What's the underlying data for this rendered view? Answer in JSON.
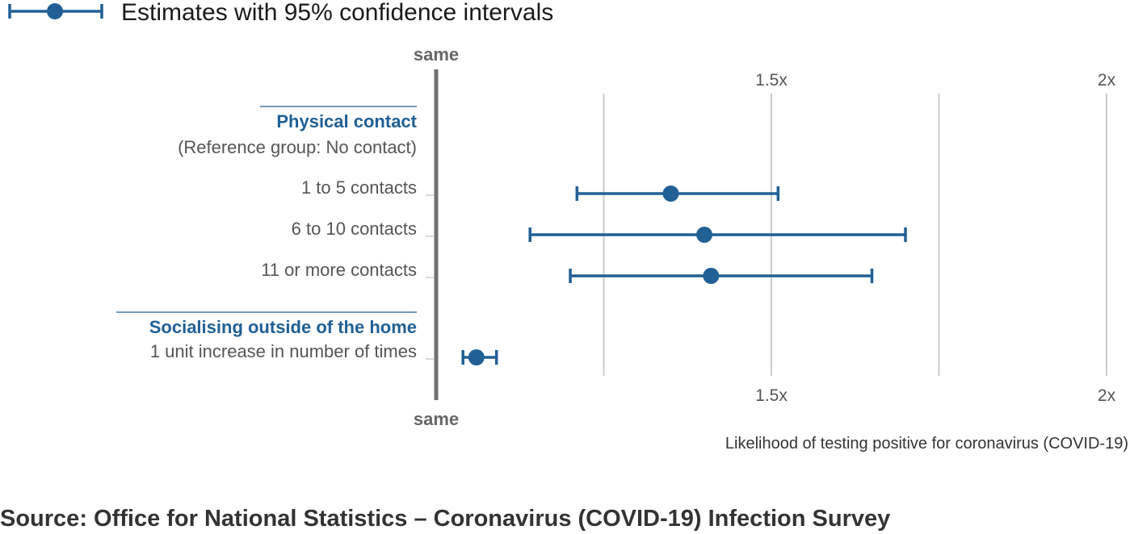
{
  "legend": {
    "label": "Estimates with 95% confidence intervals"
  },
  "reference_label": "same",
  "chart_data": {
    "type": "scatter",
    "description_type": "forest plot",
    "x_axis": {
      "scale": "multiplicative",
      "range": [
        1.0,
        2.0
      ],
      "ticks": [
        {
          "value": 1.5,
          "label": "1.5x"
        },
        {
          "value": 2.0,
          "label": "2x"
        }
      ],
      "gridlines": [
        1.25,
        1.5,
        1.75,
        2.0
      ],
      "reference_value": 1.0,
      "title": "Likelihood of testing positive for coronavirus (COVID-19)"
    },
    "groups": [
      {
        "title": "Physical contact",
        "subtitle": "(Reference group: No contact)",
        "rows": [
          {
            "label": "1 to 5 contacts",
            "estimate": 1.35,
            "lower": 1.21,
            "upper": 1.51
          },
          {
            "label": "6 to 10 contacts",
            "estimate": 1.4,
            "lower": 1.14,
            "upper": 1.7
          },
          {
            "label": "11 or more contacts",
            "estimate": 1.41,
            "lower": 1.2,
            "upper": 1.65
          }
        ]
      },
      {
        "title": "Socialising outside of the home",
        "rows": [
          {
            "label": "1 unit increase in number of times",
            "estimate": 1.06,
            "lower": 1.04,
            "upper": 1.09
          }
        ]
      }
    ],
    "colors": {
      "series": "#206095",
      "reference_line": "#707070",
      "grid": "#cccccc"
    },
    "grid": true,
    "legend_position": "top-left"
  },
  "source": "Source: Office for National Statistics – Coronavirus (COVID-19) Infection Survey"
}
